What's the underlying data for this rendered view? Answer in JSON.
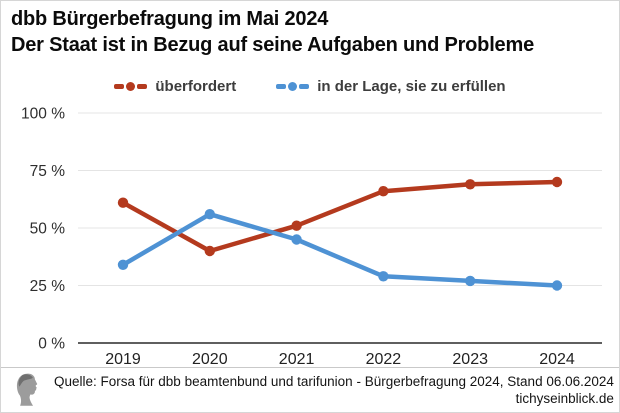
{
  "chart_data": {
    "type": "line",
    "title": "dbb Bürgerbefragung im Mai 2024",
    "subtitle": "Der Staat ist in Bezug auf seine Aufgaben und Probleme",
    "categories": [
      "2019",
      "2020",
      "2021",
      "2022",
      "2023",
      "2024"
    ],
    "series": [
      {
        "name": "überfordert",
        "color": "#b43a1e",
        "values": [
          61,
          40,
          51,
          66,
          69,
          70
        ]
      },
      {
        "name": "in der Lage, sie zu erfüllen",
        "color": "#4e92d4",
        "values": [
          34,
          56,
          45,
          29,
          27,
          25
        ]
      }
    ],
    "ylim": [
      0,
      100
    ],
    "ytick_values": [
      0,
      25,
      50,
      75,
      100
    ],
    "ytick_labels": [
      "0 %",
      "25 %",
      "50 %",
      "75 %",
      "100 %"
    ],
    "grid": true,
    "legend_position": "top",
    "marker": "dash-dot-dash"
  },
  "footer": {
    "source": "Quelle: Forsa für dbb beamtenbund und tarifunion - Bürgerbefragung 2024, Stand 06.06.2024",
    "website": "tichyseinblick.de"
  },
  "icons": {
    "logo": "classical-head-profile"
  }
}
